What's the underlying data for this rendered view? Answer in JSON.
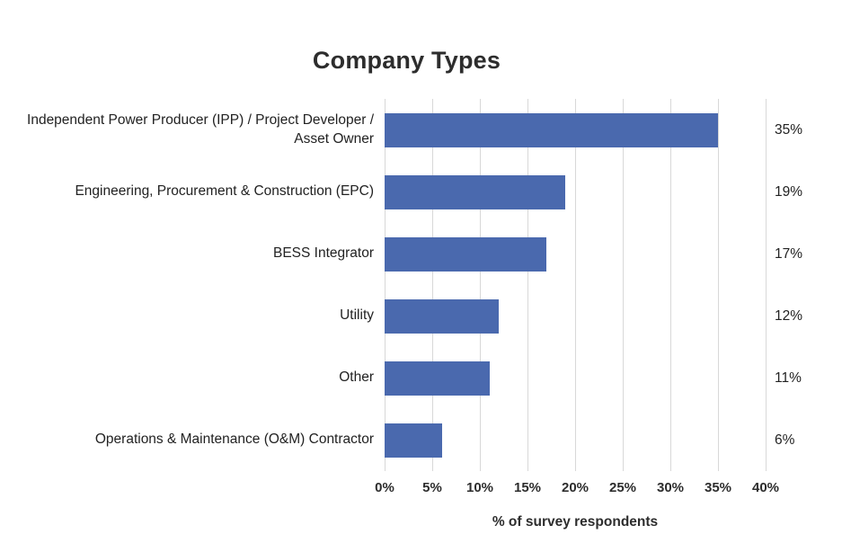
{
  "chart_data": {
    "type": "bar",
    "orientation": "horizontal",
    "title": "Company Types",
    "categories": [
      "Independent Power Producer (IPP) / Project Developer / Asset Owner",
      "Engineering, Procurement & Construction (EPC)",
      "BESS Integrator",
      "Utility",
      "Other",
      "Operations & Maintenance (O&M) Contractor"
    ],
    "values": [
      35,
      19,
      17,
      12,
      11,
      6
    ],
    "value_labels": [
      "35%",
      "19%",
      "17%",
      "12%",
      "11%",
      "6%"
    ],
    "xlabel": "% of survey respondents",
    "x_ticks": [
      "0%",
      "5%",
      "10%",
      "15%",
      "20%",
      "25%",
      "30%",
      "35%",
      "40%"
    ],
    "xlim": [
      0,
      40
    ],
    "grid": true,
    "legend": false,
    "bar_color": "#4A69AE",
    "gridline_color": "#D8D8D8",
    "text_color": "#2D2D2D"
  }
}
